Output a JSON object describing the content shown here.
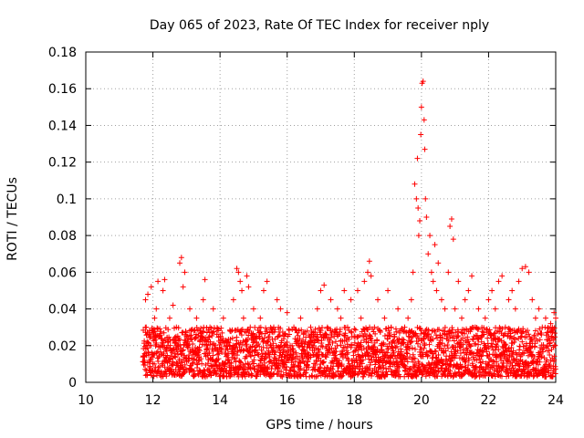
{
  "chart_data": {
    "type": "scatter",
    "title": "Day 065 of 2023, Rate Of TEC Index for receiver nply",
    "xlabel": "GPS time / hours",
    "ylabel": "ROTI / TECUs",
    "xlim": [
      10,
      24
    ],
    "ylim": [
      0,
      0.18
    ],
    "x_ticks": [
      "10",
      "12",
      "14",
      "16",
      "18",
      "20",
      "22",
      "24"
    ],
    "y_ticks": [
      "0",
      "0.02",
      "0.04",
      "0.06",
      "0.08",
      "0.1",
      "0.12",
      "0.14",
      "0.16",
      "0.18"
    ],
    "grid": true,
    "marker": "+",
    "color": "#ff0000",
    "series": [
      {
        "points": [
          [
            11.75,
            0.012
          ],
          [
            11.78,
            0.045
          ],
          [
            11.8,
            0.03
          ],
          [
            11.85,
            0.048
          ],
          [
            11.9,
            0.02
          ],
          [
            11.95,
            0.052
          ],
          [
            12.0,
            0.015
          ],
          [
            12.05,
            0.035
          ],
          [
            12.1,
            0.04
          ],
          [
            12.15,
            0.055
          ],
          [
            12.2,
            0.025
          ],
          [
            12.3,
            0.05
          ],
          [
            12.35,
            0.056
          ],
          [
            12.4,
            0.018
          ],
          [
            12.5,
            0.035
          ],
          [
            12.6,
            0.042
          ],
          [
            12.7,
            0.03
          ],
          [
            12.8,
            0.065
          ],
          [
            12.85,
            0.068
          ],
          [
            12.9,
            0.052
          ],
          [
            12.95,
            0.06
          ],
          [
            13.0,
            0.025
          ],
          [
            13.1,
            0.04
          ],
          [
            13.2,
            0.015
          ],
          [
            13.3,
            0.035
          ],
          [
            13.4,
            0.028
          ],
          [
            13.5,
            0.045
          ],
          [
            13.55,
            0.056
          ],
          [
            13.6,
            0.02
          ],
          [
            13.7,
            0.03
          ],
          [
            13.8,
            0.04
          ],
          [
            13.9,
            0.012
          ],
          [
            14.0,
            0.025
          ],
          [
            14.1,
            0.035
          ],
          [
            14.2,
            0.02
          ],
          [
            14.3,
            0.028
          ],
          [
            14.4,
            0.045
          ],
          [
            14.5,
            0.062
          ],
          [
            14.55,
            0.06
          ],
          [
            14.6,
            0.055
          ],
          [
            14.65,
            0.05
          ],
          [
            14.7,
            0.035
          ],
          [
            14.8,
            0.058
          ],
          [
            14.85,
            0.052
          ],
          [
            14.9,
            0.03
          ],
          [
            15.0,
            0.04
          ],
          [
            15.1,
            0.025
          ],
          [
            15.2,
            0.035
          ],
          [
            15.3,
            0.05
          ],
          [
            15.4,
            0.055
          ],
          [
            15.5,
            0.02
          ],
          [
            15.6,
            0.03
          ],
          [
            15.7,
            0.045
          ],
          [
            15.8,
            0.04
          ],
          [
            15.9,
            0.025
          ],
          [
            16.0,
            0.038
          ],
          [
            16.1,
            0.015
          ],
          [
            16.2,
            0.03
          ],
          [
            16.3,
            0.022
          ],
          [
            16.4,
            0.035
          ],
          [
            16.5,
            0.018
          ],
          [
            16.6,
            0.028
          ],
          [
            16.7,
            0.03
          ],
          [
            16.8,
            0.025
          ],
          [
            16.9,
            0.04
          ],
          [
            17.0,
            0.05
          ],
          [
            17.1,
            0.053
          ],
          [
            17.2,
            0.03
          ],
          [
            17.3,
            0.045
          ],
          [
            17.4,
            0.025
          ],
          [
            17.5,
            0.04
          ],
          [
            17.6,
            0.035
          ],
          [
            17.7,
            0.05
          ],
          [
            17.8,
            0.03
          ],
          [
            17.9,
            0.045
          ],
          [
            18.0,
            0.025
          ],
          [
            18.1,
            0.05
          ],
          [
            18.2,
            0.035
          ],
          [
            18.3,
            0.055
          ],
          [
            18.4,
            0.06
          ],
          [
            18.45,
            0.066
          ],
          [
            18.5,
            0.058
          ],
          [
            18.6,
            0.03
          ],
          [
            18.7,
            0.045
          ],
          [
            18.8,
            0.02
          ],
          [
            18.9,
            0.035
          ],
          [
            19.0,
            0.05
          ],
          [
            19.1,
            0.03
          ],
          [
            19.2,
            0.025
          ],
          [
            19.3,
            0.04
          ],
          [
            19.4,
            0.015
          ],
          [
            19.5,
            0.03
          ],
          [
            19.6,
            0.035
          ],
          [
            19.7,
            0.045
          ],
          [
            19.75,
            0.06
          ],
          [
            19.8,
            0.108
          ],
          [
            19.85,
            0.1
          ],
          [
            19.88,
            0.122
          ],
          [
            19.9,
            0.095
          ],
          [
            19.92,
            0.08
          ],
          [
            19.95,
            0.088
          ],
          [
            19.98,
            0.135
          ],
          [
            20.0,
            0.15
          ],
          [
            20.02,
            0.163
          ],
          [
            20.05,
            0.164
          ],
          [
            20.08,
            0.143
          ],
          [
            20.1,
            0.127
          ],
          [
            20.12,
            0.1
          ],
          [
            20.15,
            0.09
          ],
          [
            20.2,
            0.07
          ],
          [
            20.25,
            0.08
          ],
          [
            20.3,
            0.06
          ],
          [
            20.35,
            0.055
          ],
          [
            20.4,
            0.075
          ],
          [
            20.45,
            0.05
          ],
          [
            20.5,
            0.065
          ],
          [
            20.6,
            0.045
          ],
          [
            20.7,
            0.04
          ],
          [
            20.8,
            0.06
          ],
          [
            20.85,
            0.085
          ],
          [
            20.9,
            0.089
          ],
          [
            20.95,
            0.078
          ],
          [
            21.0,
            0.04
          ],
          [
            21.1,
            0.055
          ],
          [
            21.2,
            0.035
          ],
          [
            21.3,
            0.045
          ],
          [
            21.4,
            0.05
          ],
          [
            21.5,
            0.058
          ],
          [
            21.6,
            0.03
          ],
          [
            21.7,
            0.04
          ],
          [
            21.8,
            0.025
          ],
          [
            21.9,
            0.035
          ],
          [
            22.0,
            0.045
          ],
          [
            22.1,
            0.05
          ],
          [
            22.2,
            0.04
          ],
          [
            22.3,
            0.055
          ],
          [
            22.4,
            0.058
          ],
          [
            22.5,
            0.03
          ],
          [
            22.6,
            0.045
          ],
          [
            22.7,
            0.05
          ],
          [
            22.8,
            0.04
          ],
          [
            22.9,
            0.055
          ],
          [
            23.0,
            0.062
          ],
          [
            23.1,
            0.063
          ],
          [
            23.2,
            0.06
          ],
          [
            23.3,
            0.045
          ],
          [
            23.4,
            0.035
          ],
          [
            23.5,
            0.04
          ],
          [
            23.6,
            0.03
          ],
          [
            23.7,
            0.035
          ],
          [
            23.8,
            0.025
          ],
          [
            23.9,
            0.03
          ],
          [
            24.0,
            0.035
          ],
          [
            23.95,
            0.038
          ],
          [
            23.85,
            0.032
          ]
        ]
      }
    ],
    "background_band": {
      "x_start": 11.7,
      "x_end": 24.0,
      "y_low": 0.003,
      "y_high": 0.03
    }
  }
}
